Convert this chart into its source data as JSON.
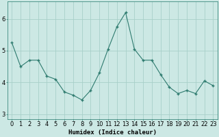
{
  "x": [
    0,
    1,
    2,
    3,
    4,
    5,
    6,
    7,
    8,
    9,
    10,
    11,
    12,
    13,
    14,
    15,
    16,
    17,
    18,
    19,
    20,
    21,
    22,
    23
  ],
  "y": [
    5.25,
    4.5,
    4.7,
    4.7,
    4.2,
    4.1,
    3.7,
    3.6,
    3.45,
    3.75,
    4.3,
    5.05,
    5.75,
    6.2,
    5.05,
    4.7,
    4.7,
    4.25,
    3.85,
    3.65,
    3.75,
    3.65,
    4.05,
    3.9
  ],
  "line_color": "#2d7a6e",
  "marker": "D",
  "marker_size": 2.0,
  "bg_color": "#cce8e4",
  "grid_color": "#a8cfc9",
  "axis_bg": "#cce8e4",
  "xlabel": "Humidex (Indice chaleur)",
  "xlabel_fontsize": 6.5,
  "tick_fontsize": 6.0,
  "ylim": [
    2.85,
    6.55
  ],
  "yticks": [
    3,
    4,
    5,
    6
  ],
  "xlim": [
    -0.5,
    23.5
  ]
}
